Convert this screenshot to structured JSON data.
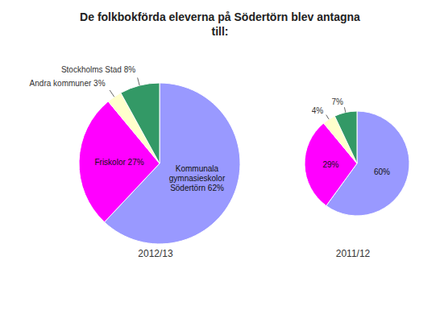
{
  "chart_data": [
    {
      "type": "pie",
      "title": "De folkbokförda eleverna på Södertörn blev antagna\ntill:",
      "subtitle": "2012/13",
      "values": [
        62,
        27,
        3,
        8
      ],
      "value_labels": [
        "Kommunala gymnasieskolor Södertörn 62%",
        "Friskolor 27%",
        "Andra kommuner 3%",
        "Stockholms Stad 8%"
      ],
      "colors": [
        "#9999FF",
        "#FF00FF",
        "#FFFFCC",
        "#339966"
      ],
      "data_labels": true
    },
    {
      "type": "pie",
      "subtitle": "2011/12",
      "values": [
        60,
        29,
        4,
        7
      ],
      "value_labels": [
        "60%",
        "29%",
        "4%",
        "7%"
      ],
      "colors": [
        "#9999FF",
        "#FF00FF",
        "#FFFFCC",
        "#339966"
      ],
      "data_labels": true
    }
  ]
}
